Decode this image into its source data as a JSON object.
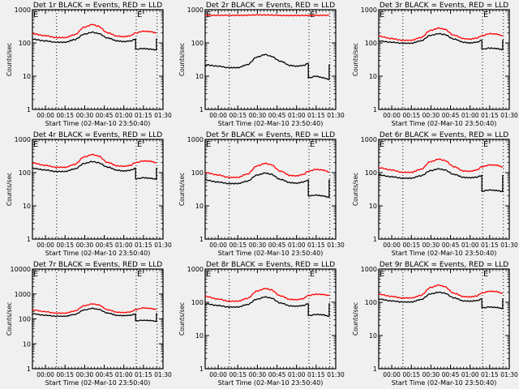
{
  "chart_data": [
    {
      "type": "line",
      "title": "Det 1r BLACK = Events, RED = LLD",
      "xlabel": "Start Time (02-Mar-10 23:50:40)",
      "ylabel": "Counts/sec",
      "yscale": "log",
      "ylim": [
        1,
        1000
      ],
      "ytick_labels": [
        "1",
        "10",
        "100",
        "1000"
      ],
      "xlim_minutes": [
        -10,
        90
      ],
      "xtick_labels": [
        "00:00",
        "00:15",
        "00:30",
        "00:45",
        "01:00",
        "01:15",
        "01:30"
      ],
      "markers": [
        "E",
        "E"
      ],
      "dotted_lines_minutes": [
        8.5,
        69.5,
        85.5
      ],
      "series": [
        {
          "name": "LLD",
          "color": "#ff0000",
          "x": [
            -10,
            0,
            8,
            15,
            22,
            30,
            36,
            40,
            48,
            55,
            60,
            65,
            69,
            75,
            80,
            85
          ],
          "y": [
            190,
            165,
            145,
            145,
            175,
            300,
            360,
            320,
            200,
            160,
            155,
            165,
            200,
            225,
            220,
            200
          ]
        },
        {
          "name": "Events",
          "color": "#000000",
          "x": [
            -10,
            0,
            8,
            15,
            22,
            30,
            36,
            40,
            48,
            55,
            60,
            65,
            69,
            69.5,
            75,
            80,
            85,
            85.5
          ],
          "y": [
            130,
            115,
            105,
            105,
            125,
            185,
            210,
            195,
            140,
            115,
            110,
            115,
            130,
            65,
            68,
            65,
            62,
            130
          ]
        }
      ]
    },
    {
      "type": "line",
      "title": "Det 2r BLACK = Events, RED = LLD",
      "xlabel": "Start Time (02-Mar-10 23:50:40)",
      "ylabel": "Counts/sec",
      "yscale": "log",
      "ylim": [
        1,
        1000
      ],
      "ytick_labels": [
        "1",
        "10",
        "100",
        "1000"
      ],
      "xlim_minutes": [
        -10,
        90
      ],
      "xtick_labels": [
        "00:00",
        "00:15",
        "00:30",
        "00:45",
        "01:00",
        "01:15",
        "01:30"
      ],
      "markers": [
        "E",
        "E"
      ],
      "dotted_lines_minutes": [
        8.5,
        69.5,
        85.5
      ],
      "series": [
        {
          "name": "LLD",
          "color": "#ff0000",
          "x": [
            -10,
            20,
            30,
            40,
            50,
            85
          ],
          "y": [
            680,
            680,
            700,
            690,
            670,
            680
          ]
        },
        {
          "name": "Events",
          "color": "#000000",
          "x": [
            -10,
            0,
            8,
            15,
            22,
            30,
            36,
            40,
            48,
            55,
            60,
            65,
            69,
            69.5,
            75,
            80,
            85,
            85.5
          ],
          "y": [
            22,
            20,
            18,
            18,
            22,
            38,
            45,
            40,
            28,
            21,
            20,
            21,
            24,
            9,
            10,
            9,
            8,
            22
          ]
        }
      ]
    },
    {
      "type": "line",
      "title": "Det 3r BLACK = Events, RED = LLD",
      "xlabel": "Start Time (02-Mar-10 23:50:40)",
      "ylabel": "Counts/sec",
      "yscale": "log",
      "ylim": [
        1,
        1000
      ],
      "ytick_labels": [
        "1",
        "10",
        "100",
        "1000"
      ],
      "xlim_minutes": [
        -10,
        90
      ],
      "xtick_labels": [
        "00:00",
        "00:15",
        "00:30",
        "00:45",
        "01:00",
        "01:15",
        "01:30"
      ],
      "markers": [
        "E",
        "E"
      ],
      "dotted_lines_minutes": [
        8.5,
        69.5,
        85.5
      ],
      "series": [
        {
          "name": "LLD",
          "color": "#ff0000",
          "x": [
            -10,
            0,
            8,
            15,
            22,
            30,
            36,
            40,
            48,
            55,
            60,
            65,
            69,
            75,
            80,
            85
          ],
          "y": [
            160,
            135,
            120,
            120,
            145,
            240,
            280,
            260,
            170,
            135,
            130,
            140,
            165,
            190,
            185,
            165
          ]
        },
        {
          "name": "Events",
          "color": "#000000",
          "x": [
            -10,
            0,
            8,
            15,
            22,
            30,
            36,
            40,
            48,
            55,
            60,
            65,
            69,
            69.5,
            75,
            80,
            85,
            85.5
          ],
          "y": [
            115,
            105,
            98,
            98,
            115,
            170,
            190,
            180,
            130,
            105,
            100,
            105,
            120,
            65,
            70,
            68,
            63,
            120
          ]
        }
      ]
    },
    {
      "type": "line",
      "title": "Det 4r BLACK = Events, RED = LLD",
      "xlabel": "Start Time (02-Mar-10 23:50:40)",
      "ylabel": "Counts/sec",
      "yscale": "log",
      "ylim": [
        1,
        1000
      ],
      "ytick_labels": [
        "1",
        "10",
        "100",
        "1000"
      ],
      "xlim_minutes": [
        -10,
        90
      ],
      "xtick_labels": [
        "00:00",
        "00:15",
        "00:30",
        "00:45",
        "01:00",
        "01:15",
        "01:30"
      ],
      "markers": [
        "E",
        "E"
      ],
      "dotted_lines_minutes": [
        8.5,
        69.5,
        85.5
      ],
      "series": [
        {
          "name": "LLD",
          "color": "#ff0000",
          "x": [
            -10,
            0,
            8,
            15,
            22,
            30,
            36,
            40,
            48,
            55,
            60,
            65,
            69,
            75,
            80,
            85
          ],
          "y": [
            195,
            165,
            145,
            145,
            175,
            300,
            350,
            320,
            200,
            160,
            155,
            165,
            200,
            225,
            220,
            200
          ]
        },
        {
          "name": "Events",
          "color": "#000000",
          "x": [
            -10,
            0,
            8,
            15,
            22,
            30,
            36,
            40,
            48,
            55,
            60,
            65,
            69,
            69.5,
            75,
            80,
            85,
            85.5
          ],
          "y": [
            135,
            120,
            108,
            108,
            128,
            190,
            215,
            200,
            145,
            118,
            112,
            118,
            135,
            65,
            70,
            68,
            63,
            135
          ]
        }
      ]
    },
    {
      "type": "line",
      "title": "Det 5r BLACK = Events, RED = LLD",
      "xlabel": "Start Time (02-Mar-10 23:50:40)",
      "ylabel": "Counts/sec",
      "yscale": "log",
      "ylim": [
        1,
        1000
      ],
      "ytick_labels": [
        "1",
        "10",
        "100",
        "1000"
      ],
      "xlim_minutes": [
        -10,
        90
      ],
      "xtick_labels": [
        "00:00",
        "00:15",
        "00:30",
        "00:45",
        "01:00",
        "01:15",
        "01:30"
      ],
      "markers": [
        "E",
        "E"
      ],
      "dotted_lines_minutes": [
        8.5,
        69.5,
        85.5
      ],
      "series": [
        {
          "name": "LLD",
          "color": "#ff0000",
          "x": [
            -10,
            0,
            8,
            15,
            22,
            30,
            36,
            40,
            48,
            55,
            60,
            65,
            69,
            75,
            80,
            85
          ],
          "y": [
            100,
            85,
            72,
            72,
            90,
            160,
            190,
            175,
            110,
            82,
            80,
            88,
            110,
            125,
            120,
            105
          ]
        },
        {
          "name": "Events",
          "color": "#000000",
          "x": [
            -10,
            0,
            8,
            15,
            22,
            30,
            36,
            40,
            48,
            55,
            60,
            65,
            69,
            69.5,
            75,
            80,
            85,
            85.5
          ],
          "y": [
            60,
            52,
            47,
            47,
            55,
            85,
            97,
            90,
            62,
            50,
            48,
            52,
            60,
            20,
            21,
            20,
            18,
            60
          ]
        }
      ]
    },
    {
      "type": "line",
      "title": "Det 6r BLACK = Events, RED = LLD",
      "xlabel": "Start Time (02-Mar-10 23:50:40)",
      "ylabel": "Counts/sec",
      "yscale": "log",
      "ylim": [
        1,
        1000
      ],
      "ytick_labels": [
        "1",
        "10",
        "100",
        "1000"
      ],
      "xlim_minutes": [
        -10,
        90
      ],
      "xtick_labels": [
        "00:00",
        "00:15",
        "00:30",
        "00:45",
        "01:00",
        "01:15",
        "01:30"
      ],
      "markers": [
        "E",
        "E"
      ],
      "dotted_lines_minutes": [
        8.5,
        69.5,
        85.5
      ],
      "series": [
        {
          "name": "LLD",
          "color": "#ff0000",
          "x": [
            -10,
            0,
            8,
            15,
            22,
            30,
            36,
            40,
            48,
            55,
            60,
            65,
            69,
            75,
            80,
            85
          ],
          "y": [
            140,
            120,
            102,
            102,
            125,
            215,
            255,
            235,
            150,
            112,
            110,
            120,
            150,
            170,
            168,
            148
          ]
        },
        {
          "name": "Events",
          "color": "#000000",
          "x": [
            -10,
            0,
            8,
            15,
            22,
            30,
            36,
            40,
            48,
            55,
            60,
            65,
            69,
            69.5,
            75,
            80,
            85,
            85.5
          ],
          "y": [
            85,
            75,
            68,
            68,
            80,
            115,
            130,
            122,
            88,
            72,
            70,
            73,
            82,
            28,
            30,
            29,
            27,
            82
          ]
        }
      ]
    },
    {
      "type": "line",
      "title": "Det 7r BLACK = Events, RED = LLD",
      "xlabel": "Start Time (02-Mar-10 23:50:40)",
      "ylabel": "Counts/sec",
      "yscale": "log",
      "ylim": [
        1,
        10000
      ],
      "ytick_labels": [
        "1",
        "10",
        "100",
        "1000",
        "10000"
      ],
      "xlim_minutes": [
        -10,
        90
      ],
      "xtick_labels": [
        "00:00",
        "00:15",
        "00:30",
        "00:45",
        "01:00",
        "01:15",
        "01:30"
      ],
      "markers": [
        "E",
        "E"
      ],
      "dotted_lines_minutes": [
        8.5,
        69.5,
        85.5
      ],
      "series": [
        {
          "name": "LLD",
          "color": "#ff0000",
          "x": [
            -10,
            0,
            8,
            15,
            22,
            30,
            36,
            40,
            48,
            55,
            60,
            65,
            69,
            75,
            80,
            85
          ],
          "y": [
            230,
            195,
            170,
            170,
            205,
            340,
            400,
            370,
            230,
            185,
            180,
            190,
            235,
            275,
            265,
            240
          ]
        },
        {
          "name": "Events",
          "color": "#000000",
          "x": [
            -10,
            0,
            8,
            15,
            22,
            30,
            36,
            40,
            48,
            55,
            60,
            65,
            69,
            69.5,
            75,
            80,
            85,
            85.5
          ],
          "y": [
            160,
            140,
            128,
            128,
            150,
            230,
            265,
            245,
            170,
            138,
            135,
            140,
            158,
            85,
            88,
            86,
            80,
            160
          ]
        }
      ]
    },
    {
      "type": "line",
      "title": "Det 8r BLACK = Events, RED = LLD",
      "xlabel": "Start Time (02-Mar-10 23:50:40)",
      "ylabel": "Counts/sec",
      "yscale": "log",
      "ylim": [
        1,
        1000
      ],
      "ytick_labels": [
        "1",
        "10",
        "100",
        "1000"
      ],
      "xlim_minutes": [
        -10,
        90
      ],
      "xtick_labels": [
        "00:00",
        "00:15",
        "00:30",
        "00:45",
        "01:00",
        "01:15",
        "01:30"
      ],
      "markers": [
        "E",
        "E"
      ],
      "dotted_lines_minutes": [
        8.5,
        69.5,
        85.5
      ],
      "series": [
        {
          "name": "LLD",
          "color": "#ff0000",
          "x": [
            -10,
            0,
            8,
            15,
            22,
            30,
            36,
            40,
            48,
            55,
            60,
            65,
            69,
            75,
            80,
            85
          ],
          "y": [
            150,
            125,
            108,
            108,
            130,
            220,
            260,
            240,
            155,
            122,
            120,
            128,
            160,
            175,
            172,
            160
          ]
        },
        {
          "name": "Events",
          "color": "#000000",
          "x": [
            -10,
            0,
            8,
            15,
            22,
            30,
            36,
            40,
            48,
            55,
            60,
            65,
            69,
            69.5,
            75,
            80,
            85,
            85.5
          ],
          "y": [
            90,
            80,
            72,
            72,
            85,
            125,
            145,
            135,
            95,
            78,
            76,
            80,
            90,
            40,
            43,
            42,
            38,
            90
          ]
        }
      ]
    },
    {
      "type": "line",
      "title": "Det 9r BLACK = Events, RED = LLD",
      "xlabel": "Start Time (02-Mar-10 23:50:40)",
      "ylabel": "Counts/sec",
      "yscale": "log",
      "ylim": [
        1,
        1000
      ],
      "ytick_labels": [
        "1",
        "10",
        "100",
        "1000"
      ],
      "xlim_minutes": [
        -10,
        90
      ],
      "xtick_labels": [
        "00:00",
        "00:15",
        "00:30",
        "00:45",
        "01:00",
        "01:15",
        "01:30"
      ],
      "markers": [
        "E",
        "E"
      ],
      "dotted_lines_minutes": [
        8.5,
        69.5,
        85.5
      ],
      "series": [
        {
          "name": "LLD",
          "color": "#ff0000",
          "x": [
            -10,
            0,
            8,
            15,
            22,
            30,
            36,
            40,
            48,
            55,
            60,
            65,
            69,
            75,
            80,
            85
          ],
          "y": [
            175,
            150,
            135,
            135,
            160,
            280,
            330,
            300,
            185,
            148,
            145,
            155,
            190,
            215,
            210,
            185
          ]
        },
        {
          "name": "Events",
          "color": "#000000",
          "x": [
            -10,
            0,
            8,
            15,
            22,
            30,
            36,
            40,
            48,
            55,
            60,
            65,
            69,
            69.5,
            75,
            80,
            85,
            85.5
          ],
          "y": [
            125,
            110,
            102,
            102,
            120,
            180,
            200,
            190,
            135,
            110,
            108,
            112,
            125,
            68,
            72,
            70,
            65,
            125
          ]
        }
      ]
    }
  ]
}
